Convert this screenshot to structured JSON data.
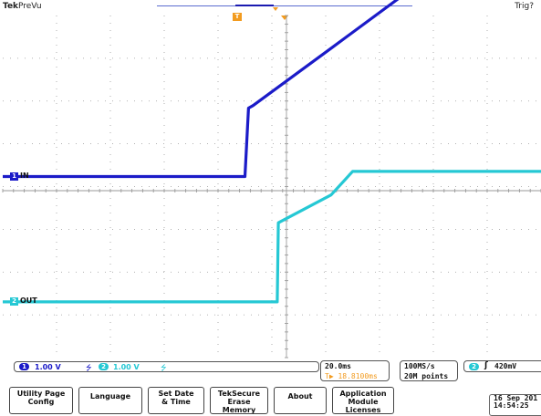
{
  "header": {
    "brand": "Tek",
    "mode": "PreVu",
    "trigger_state": "Trig?"
  },
  "markers": {
    "trigger_position_label": "T"
  },
  "channels": [
    {
      "id": "1",
      "label": "IN",
      "color": "#1b1bc8"
    },
    {
      "id": "2",
      "label": "OUT",
      "color": "#25c8d4"
    }
  ],
  "colors": {
    "ch1": "#1b1bc8",
    "ch2": "#25c8d4",
    "accent": "#f29b1f",
    "grid": "#9a9a9a"
  },
  "scale_readout": {
    "ch1_id": "1",
    "ch1_scale": "1.00 V",
    "ch1_bw": "⭍",
    "ch2_id": "2",
    "ch2_scale": "1.00 V",
    "ch2_bw": "⭍"
  },
  "timebase": {
    "scale": "20.0ms",
    "delay": "▶ 18.8100ms",
    "delay_icon": "T"
  },
  "acquisition": {
    "sample_rate": "100MS/s",
    "record_length": "20M points"
  },
  "trigger": {
    "source": "2",
    "edge_symbol": "ʃ",
    "level": "420mV"
  },
  "menu": {
    "buttons": [
      "Utility Page\nConfig",
      "Language",
      "Set Date\n& Time",
      "TekSecure\nErase\nMemory",
      "About",
      "Application\nModule\nLicenses"
    ],
    "date": "16 Sep  201",
    "time": "14:54:25"
  },
  "chart_data": {
    "type": "line",
    "title": "",
    "xlabel": "",
    "ylabel": "",
    "x_unit": "ms",
    "y_unit": "V",
    "xlim": [
      -98.81,
      101.19
    ],
    "ylim": [
      -4,
      4
    ],
    "grid": true,
    "series": [
      {
        "name": "IN",
        "channel": "1",
        "offset_div": 0.33,
        "x": [
          -98.81,
          -8.8,
          -7.5,
          -5.8,
          23.2,
          51.2,
          101.19
        ],
        "y": [
          0.0,
          0.0,
          1.6,
          1.66,
          3.0,
          4.3,
          4.3
        ]
      },
      {
        "name": "OUT",
        "channel": "2",
        "offset_div": -2.6,
        "x": [
          -98.81,
          3.2,
          3.6,
          23.2,
          31.2,
          101.19
        ],
        "y": [
          0.0,
          0.0,
          1.85,
          2.5,
          3.05,
          3.05
        ]
      }
    ]
  }
}
